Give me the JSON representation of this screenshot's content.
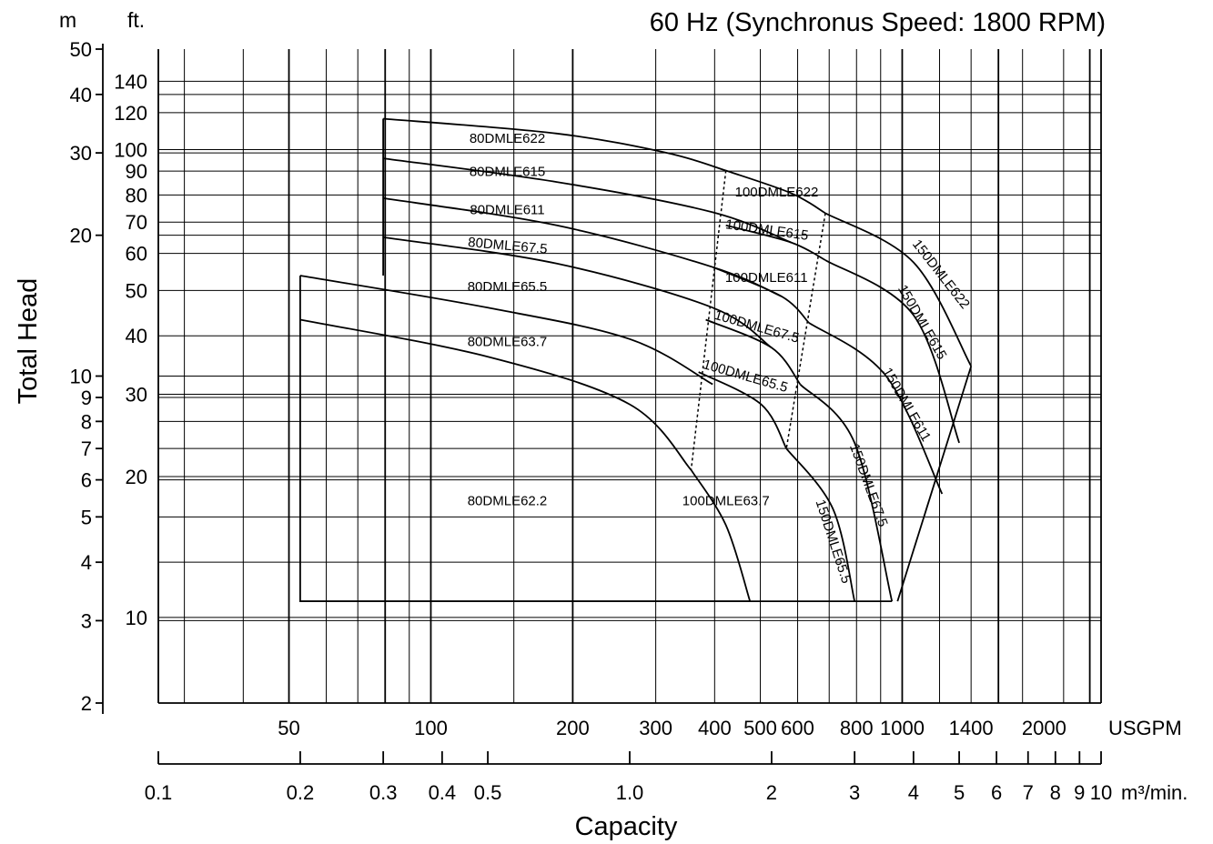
{
  "chart_data": {
    "type": "line",
    "title": "60 Hz (Synchronus Speed: 1800 RPM)",
    "xlabel": "Capacity",
    "ylabel": "Total Head",
    "x_scale": "log",
    "y_scale": "log",
    "xlim_m3min": [
      0.1,
      10
    ],
    "ylim_m": [
      2,
      50
    ],
    "grid": true,
    "axes": {
      "y_m": {
        "unit_label": "m",
        "ticks": [
          50,
          40,
          30,
          20,
          10,
          9,
          8,
          7,
          6,
          5,
          4,
          3,
          2
        ]
      },
      "y_ft": {
        "unit_label": "ft.",
        "ticks": [
          140,
          120,
          100,
          90,
          80,
          70,
          60,
          50,
          40,
          30,
          20,
          10
        ]
      },
      "x_usgpm": {
        "unit_label": "USGPM",
        "ticks": [
          50,
          100,
          200,
          300,
          400,
          500,
          600,
          800,
          1000,
          1400,
          2000
        ]
      },
      "x_m3": {
        "unit_label": "m³/min.",
        "ticks": [
          "0.1",
          "0.2",
          "0.3",
          "0.4",
          "0.5",
          "1.0",
          "2",
          "3",
          "4",
          "5",
          "6",
          "7",
          "8",
          "9",
          "10"
        ]
      }
    },
    "series": [
      {
        "name": "80DMLE622",
        "x": [
          0.3,
          0.7,
          1.2,
          1.6
        ],
        "y": [
          35.5,
          33,
          30,
          27.5
        ]
      },
      {
        "name": "80DMLE615",
        "x": [
          0.3,
          0.7,
          1.5,
          2.2
        ],
        "y": [
          29.2,
          26,
          22.4,
          19.3
        ]
      },
      {
        "name": "80DMLE611",
        "x": [
          0.3,
          0.7,
          1.5,
          2.1
        ],
        "y": [
          24,
          21,
          17.1,
          14.8
        ]
      },
      {
        "name": "80DMLE67.5",
        "x": [
          0.3,
          0.7,
          1.5,
          2.0
        ],
        "y": [
          19.8,
          17.4,
          14,
          11.5
        ]
      },
      {
        "name": "80DMLE65.5",
        "x": [
          0.2,
          0.5,
          1.0,
          1.5
        ],
        "y": [
          16.4,
          14,
          12,
          9.6
        ]
      },
      {
        "name": "80DMLE63.7",
        "x": [
          0.2,
          0.5,
          1.0,
          1.35
        ],
        "y": [
          13.2,
          11,
          8.7,
          6.3
        ]
      },
      {
        "name": "80DMLE62.2",
        "x": [
          0.2,
          0.5,
          1.0,
          1.8
        ],
        "y": [
          3.3,
          3.3,
          3.3,
          3.3
        ]
      },
      {
        "name": "100DMLE622",
        "x": [
          1.6,
          2.2,
          2.6
        ],
        "y": [
          27.5,
          24.6,
          22.3
        ]
      },
      {
        "name": "100DMLE615",
        "x": [
          1.6,
          2.2,
          2.6
        ],
        "y": [
          21,
          19.3,
          17.7
        ]
      },
      {
        "name": "100DMLE611",
        "x": [
          1.5,
          2.1,
          2.4
        ],
        "y": [
          17.1,
          14.8,
          13
        ]
      },
      {
        "name": "100DMLE67.5",
        "x": [
          1.45,
          2.0,
          2.3
        ],
        "y": [
          13.2,
          11.5,
          9.6
        ]
      },
      {
        "name": "100DMLE65.5",
        "x": [
          1.4,
          1.9,
          2.15
        ],
        "y": [
          10.2,
          8.7,
          7
        ]
      },
      {
        "name": "100DMLE63.7",
        "x": [
          1.35,
          1.6,
          1.8
        ],
        "y": [
          6.3,
          4.8,
          3.3
        ]
      },
      {
        "name": "150DMLE622",
        "x": [
          2.6,
          4.0,
          5.3
        ],
        "y": [
          22.3,
          17.5,
          10.5
        ]
      },
      {
        "name": "150DMLE615",
        "x": [
          2.6,
          4.0,
          5.0
        ],
        "y": [
          17.7,
          13.5,
          7.2
        ]
      },
      {
        "name": "150DMLE611",
        "x": [
          2.4,
          3.5,
          4.6
        ],
        "y": [
          13,
          10,
          5.6
        ]
      },
      {
        "name": "150DMLE67.5",
        "x": [
          2.3,
          3.0,
          3.6
        ],
        "y": [
          9.6,
          7.2,
          3.3
        ]
      },
      {
        "name": "150DMLE65.5",
        "x": [
          2.15,
          2.7,
          3.0
        ],
        "y": [
          7,
          5.2,
          3.3
        ]
      }
    ]
  }
}
